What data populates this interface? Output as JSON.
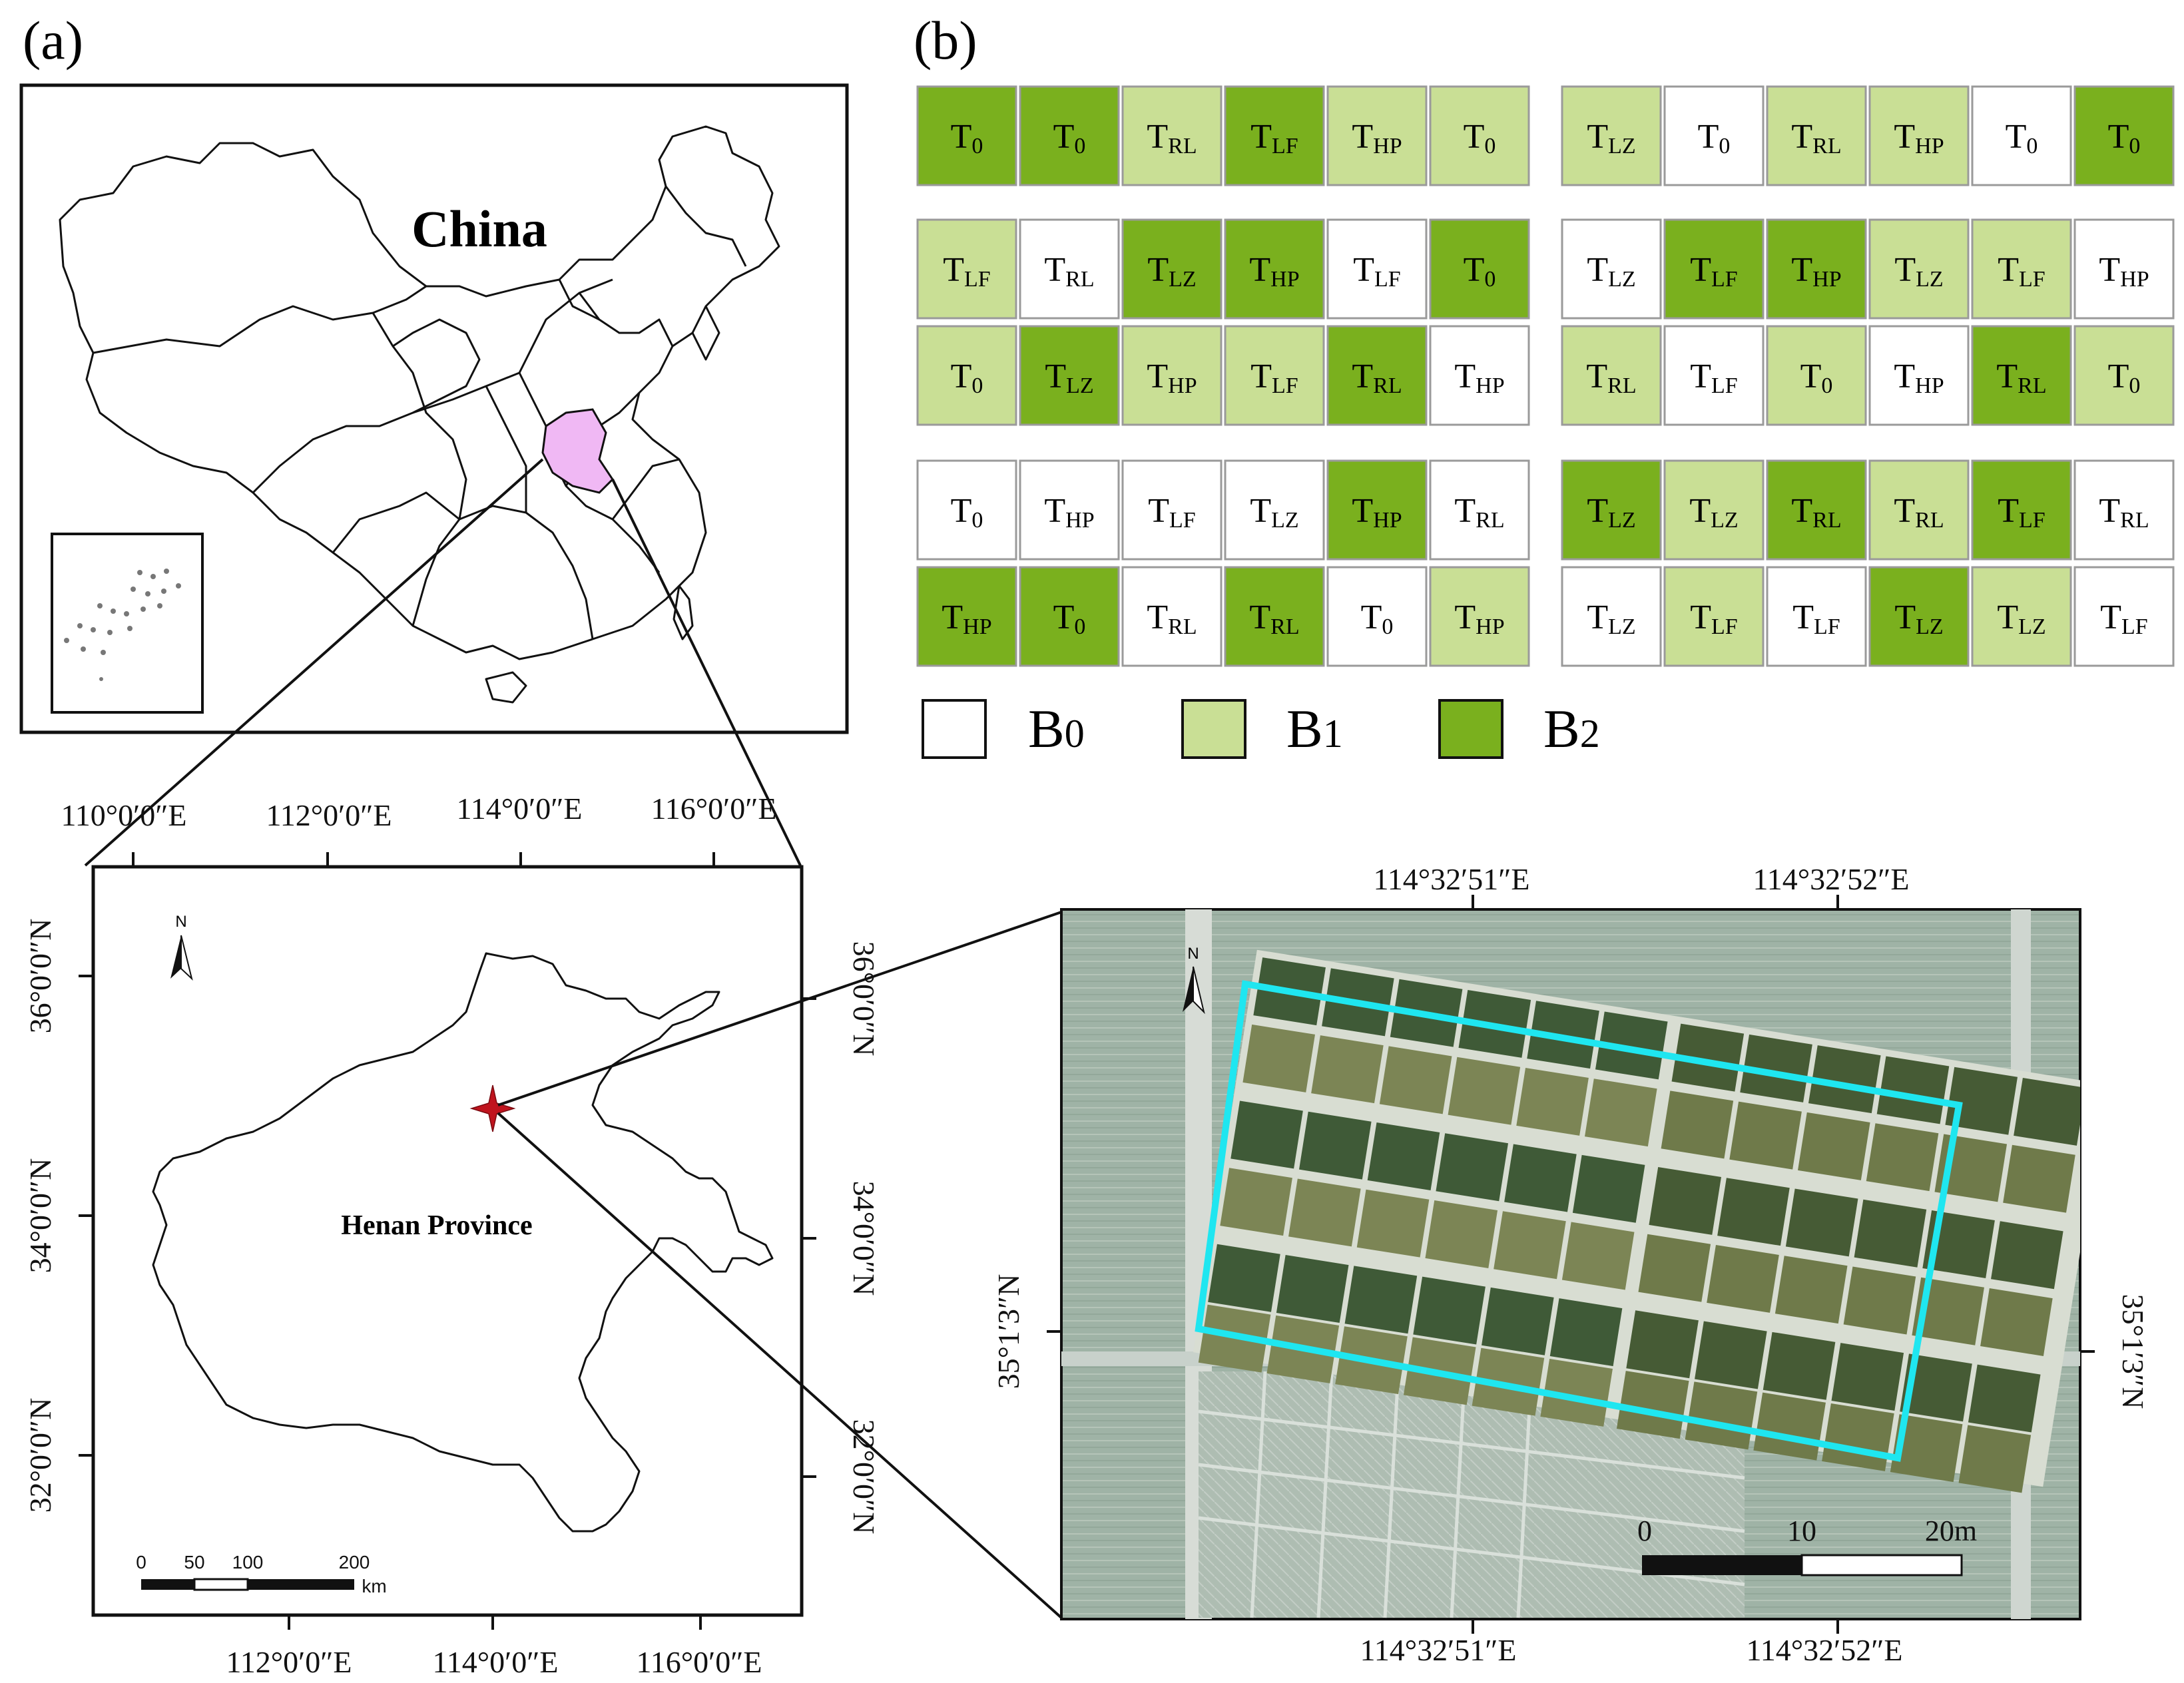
{
  "panel_a": {
    "label": "(a)",
    "country_label": "China",
    "province_label": "Henan Province",
    "north_label": "N",
    "top_ticks": [
      "110°0′0″E",
      "112°0′0″E",
      "114°0′0″E",
      "116°0′0″E"
    ],
    "bottom_ticks": [
      "112°0′0″E",
      "114°0′0″E",
      "116°0′0″E"
    ],
    "left_ticks": [
      "36°0′0″N",
      "34°0′0″N",
      "32°0′0″N"
    ],
    "right_ticks": [
      "36°0′0″N",
      "34°0′0″N",
      "32°0′0″N"
    ],
    "scale_ticks": [
      "0",
      "50",
      "100",
      "200"
    ],
    "scale_unit": "km",
    "highlight_color": "#f0b8f4",
    "site_marker_color": "#c0141e"
  },
  "panel_b": {
    "label": "(b)",
    "block_colors": {
      "B0": "#ffffff",
      "B1": "#c9df95",
      "B2": "#7ab01e"
    },
    "legend": [
      {
        "key": "B0",
        "text": "B",
        "sub": "0"
      },
      {
        "key": "B1",
        "text": "B",
        "sub": "1"
      },
      {
        "key": "B2",
        "text": "B",
        "sub": "2"
      }
    ],
    "groups": [
      {
        "rows": [
          {
            "left": [
              [
                "0",
                "B2"
              ],
              [
                "0",
                "B2"
              ],
              [
                "RL",
                "B1"
              ],
              [
                "LF",
                "B2"
              ],
              [
                "HP",
                "B1"
              ],
              [
                "0",
                "B1"
              ]
            ],
            "right": [
              [
                "LZ",
                "B1"
              ],
              [
                "0",
                "B0"
              ],
              [
                "RL",
                "B1"
              ],
              [
                "HP",
                "B1"
              ],
              [
                "0",
                "B0"
              ],
              [
                "0",
                "B2"
              ]
            ]
          }
        ]
      },
      {
        "rows": [
          {
            "left": [
              [
                "LF",
                "B1"
              ],
              [
                "RL",
                "B0"
              ],
              [
                "LZ",
                "B2"
              ],
              [
                "HP",
                "B2"
              ],
              [
                "LF",
                "B0"
              ],
              [
                "0",
                "B2"
              ]
            ],
            "right": [
              [
                "LZ",
                "B0"
              ],
              [
                "LF",
                "B2"
              ],
              [
                "HP",
                "B2"
              ],
              [
                "LZ",
                "B1"
              ],
              [
                "LF",
                "B1"
              ],
              [
                "HP",
                "B0"
              ]
            ]
          },
          {
            "left": [
              [
                "0",
                "B1"
              ],
              [
                "LZ",
                "B2"
              ],
              [
                "HP",
                "B1"
              ],
              [
                "LF",
                "B1"
              ],
              [
                "RL",
                "B2"
              ],
              [
                "HP",
                "B0"
              ]
            ],
            "right": [
              [
                "RL",
                "B1"
              ],
              [
                "LF",
                "B0"
              ],
              [
                "0",
                "B1"
              ],
              [
                "HP",
                "B0"
              ],
              [
                "RL",
                "B2"
              ],
              [
                "0",
                "B1"
              ]
            ]
          }
        ]
      },
      {
        "rows": [
          {
            "left": [
              [
                "0",
                "B0"
              ],
              [
                "HP",
                "B0"
              ],
              [
                "LF",
                "B0"
              ],
              [
                "LZ",
                "B0"
              ],
              [
                "HP",
                "B2"
              ],
              [
                "RL",
                "B0"
              ]
            ],
            "right": [
              [
                "LZ",
                "B2"
              ],
              [
                "LZ",
                "B1"
              ],
              [
                "RL",
                "B2"
              ],
              [
                "RL",
                "B1"
              ],
              [
                "LF",
                "B2"
              ],
              [
                "RL",
                "B0"
              ]
            ]
          },
          {
            "left": [
              [
                "HP",
                "B2"
              ],
              [
                "0",
                "B2"
              ],
              [
                "RL",
                "B0"
              ],
              [
                "RL",
                "B2"
              ],
              [
                "0",
                "B0"
              ],
              [
                "HP",
                "B1"
              ]
            ],
            "right": [
              [
                "LZ",
                "B0"
              ],
              [
                "LF",
                "B1"
              ],
              [
                "LF",
                "B0"
              ],
              [
                "LZ",
                "B2"
              ],
              [
                "LZ",
                "B1"
              ],
              [
                "LF",
                "B0"
              ]
            ]
          }
        ]
      }
    ]
  },
  "panel_c": {
    "north_label": "N",
    "top_ticks": [
      "114°32′51″E",
      "114°32′52″E"
    ],
    "bottom_ticks": [
      "114°32′51″E",
      "114°32′52″E"
    ],
    "left_tick": "35°1′3″N",
    "right_tick": "35°1′3″N",
    "scale_ticks": [
      "0",
      "10",
      "20m"
    ],
    "boundary_color": "#1fe6f0"
  }
}
